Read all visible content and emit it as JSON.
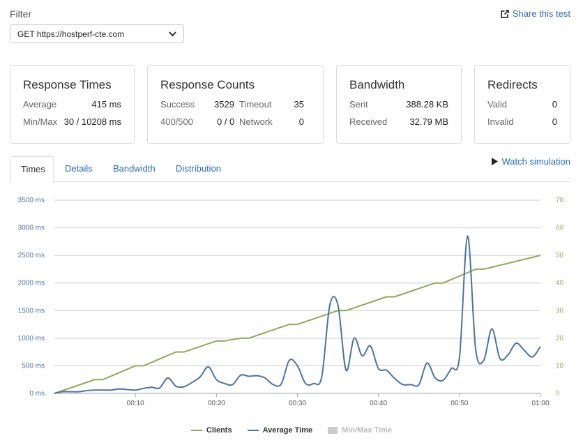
{
  "filter": {
    "label": "Filter",
    "selected": "GET https://hostperf-cte.com"
  },
  "share": {
    "label": "Share this test"
  },
  "cards": {
    "response_times": {
      "title": "Response Times",
      "average_label": "Average",
      "average_value": "415 ms",
      "minmax_label": "Min/Max",
      "minmax_value": "30 / 10208 ms"
    },
    "response_counts": {
      "title": "Response Counts",
      "success_label": "Success",
      "success_value": "3529",
      "timeout_label": "Timeout",
      "timeout_value": "35",
      "err_label": "400/500",
      "err_value": "0 / 0",
      "network_label": "Network",
      "network_value": "0"
    },
    "bandwidth": {
      "title": "Bandwidth",
      "sent_label": "Sent",
      "sent_value": "388.28 KB",
      "received_label": "Received",
      "received_value": "32.79 MB"
    },
    "redirects": {
      "title": "Redirects",
      "valid_label": "Valid",
      "valid_value": "0",
      "invalid_label": "Invalid",
      "invalid_value": "0"
    }
  },
  "tabs": [
    "Times",
    "Details",
    "Bandwidth",
    "Distribution"
  ],
  "active_tab": "Times",
  "watch_simulation": "Watch simulation",
  "legend": {
    "clients": "Clients",
    "average_time": "Average Time",
    "minmax_time": "Min/Max Time"
  },
  "colors": {
    "clients": "#8faa5a",
    "average": "#4b73a2",
    "link": "#2a6cb5",
    "grid": "#cccccc"
  },
  "chart_data": {
    "type": "line",
    "x_unit": "seconds",
    "x_ticks": [
      "00:10",
      "00:20",
      "00:30",
      "00:40",
      "00:50",
      "01:00"
    ],
    "xlim": [
      0,
      60
    ],
    "y_left_ticks": [
      "0 ms",
      "500 ms",
      "1000 ms",
      "1500 ms",
      "2000 ms",
      "2500 ms",
      "3000 ms",
      "3500 ms"
    ],
    "ylim_left": [
      0,
      3500
    ],
    "y_right_ticks": [
      "0",
      "10",
      "20",
      "30",
      "40",
      "50",
      "60",
      "70"
    ],
    "ylim_right": [
      0,
      70
    ],
    "grid": true,
    "legend_position": "bottom",
    "series": [
      {
        "name": "Clients",
        "axis": "right",
        "x": [
          0,
          5,
          6,
          10,
          11,
          15,
          16,
          20,
          21,
          23,
          24,
          29,
          30,
          35,
          36,
          41,
          42,
          47,
          48,
          52,
          53,
          60
        ],
        "y": [
          0,
          5,
          5,
          10,
          10,
          15,
          15,
          19,
          19,
          20,
          20,
          25,
          25,
          30,
          30,
          35,
          35,
          40,
          40,
          45,
          45,
          50
        ]
      },
      {
        "name": "Average Time",
        "axis": "left",
        "x": [
          0,
          1,
          2,
          3,
          4,
          5,
          6,
          7,
          8,
          9,
          10,
          11,
          12,
          13,
          14,
          15,
          16,
          17,
          18,
          19,
          20,
          21,
          22,
          23,
          24,
          25,
          26,
          27,
          28,
          29,
          30,
          31,
          32,
          33,
          34,
          35,
          36,
          37,
          38,
          39,
          40,
          41,
          42,
          43,
          44,
          45,
          46,
          47,
          48,
          49,
          50,
          51,
          52,
          53,
          54,
          55,
          56,
          57,
          58,
          59,
          60
        ],
        "y": [
          0,
          30,
          30,
          30,
          50,
          60,
          60,
          60,
          80,
          70,
          60,
          90,
          110,
          100,
          280,
          130,
          120,
          200,
          300,
          480,
          250,
          180,
          160,
          330,
          310,
          320,
          280,
          160,
          170,
          600,
          500,
          180,
          180,
          300,
          1600,
          1600,
          420,
          1000,
          680,
          860,
          450,
          420,
          270,
          160,
          160,
          160,
          550,
          280,
          240,
          450,
          650,
          2850,
          800,
          600,
          1170,
          630,
          700,
          910,
          780,
          660,
          850
        ]
      }
    ]
  }
}
